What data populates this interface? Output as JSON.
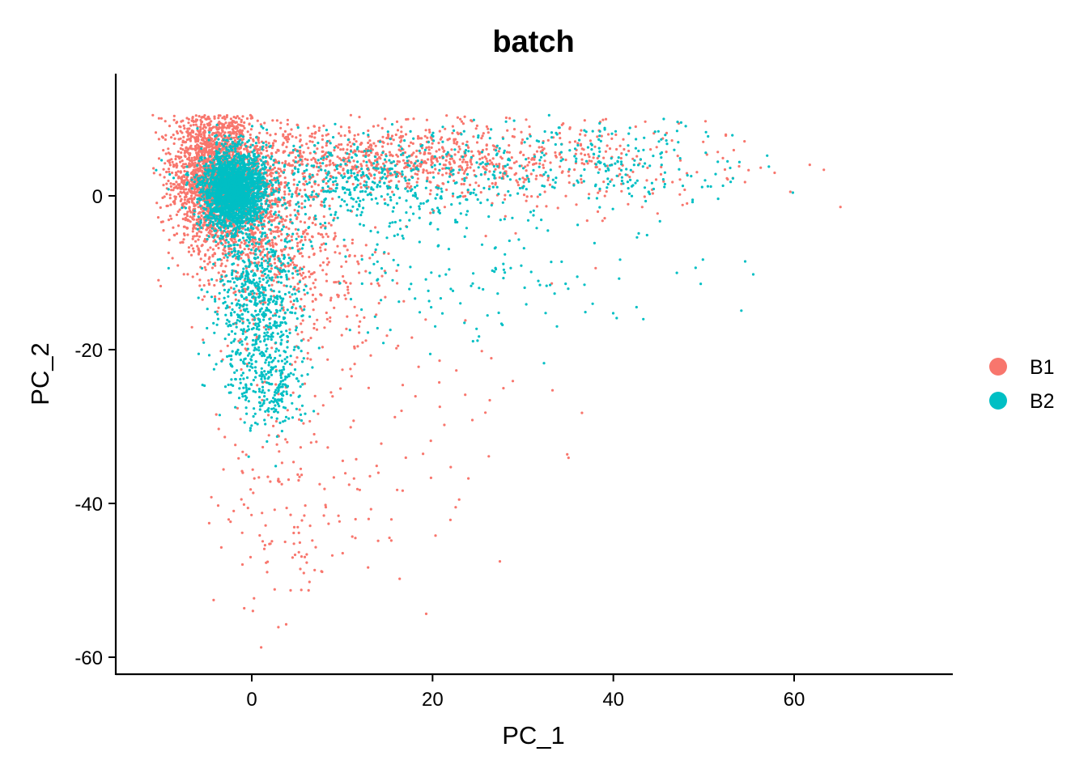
{
  "chart_data": {
    "type": "scatter",
    "title": "batch",
    "xlabel": "PC_1",
    "ylabel": "PC_2",
    "xlim": [
      -15,
      77
    ],
    "ylim": [
      -62,
      16
    ],
    "x_ticks": [
      0,
      20,
      40,
      60
    ],
    "y_ticks": [
      0,
      -20,
      -40,
      -60
    ],
    "grid": false,
    "legend_position": "right",
    "series": [
      {
        "name": "B1",
        "color": "#F8766D",
        "clusters": [
          {
            "cx": -4.5,
            "cy": 2.5,
            "sx": 2.2,
            "sy": 4.5,
            "n": 1700
          },
          {
            "cx": 0.5,
            "cy": -1.5,
            "sx": 3.5,
            "sy": 5.5,
            "n": 900
          },
          {
            "cx": 15,
            "cy": 5,
            "sx": 10,
            "sy": 2.2,
            "n": 700
          },
          {
            "cx": 32,
            "cy": 4,
            "sx": 12,
            "sy": 3,
            "n": 300
          },
          {
            "cx": 4,
            "cy": -40,
            "sx": 4,
            "sy": 8,
            "n": 140
          },
          {
            "cx": 15,
            "cy": -22,
            "sx": 10,
            "sy": 15,
            "n": 110
          },
          {
            "cx": 5,
            "cy": -12,
            "sx": 5,
            "sy": 6,
            "n": 250
          }
        ]
      },
      {
        "name": "B2",
        "color": "#00BFC4",
        "clusters": [
          {
            "cx": -2,
            "cy": 0.8,
            "sx": 1.7,
            "sy": 2.5,
            "n": 2200
          },
          {
            "cx": 0.5,
            "cy": -14,
            "sx": 2.5,
            "sy": 6,
            "n": 700
          },
          {
            "cx": 2.5,
            "cy": -25,
            "sx": 2,
            "sy": 3,
            "n": 180
          },
          {
            "cx": 12,
            "cy": 2,
            "sx": 8,
            "sy": 3,
            "n": 500
          },
          {
            "cx": 38,
            "cy": 4,
            "sx": 9,
            "sy": 3,
            "n": 250
          },
          {
            "cx": 22,
            "cy": -8,
            "sx": 12,
            "sy": 6,
            "n": 200
          }
        ]
      }
    ]
  }
}
